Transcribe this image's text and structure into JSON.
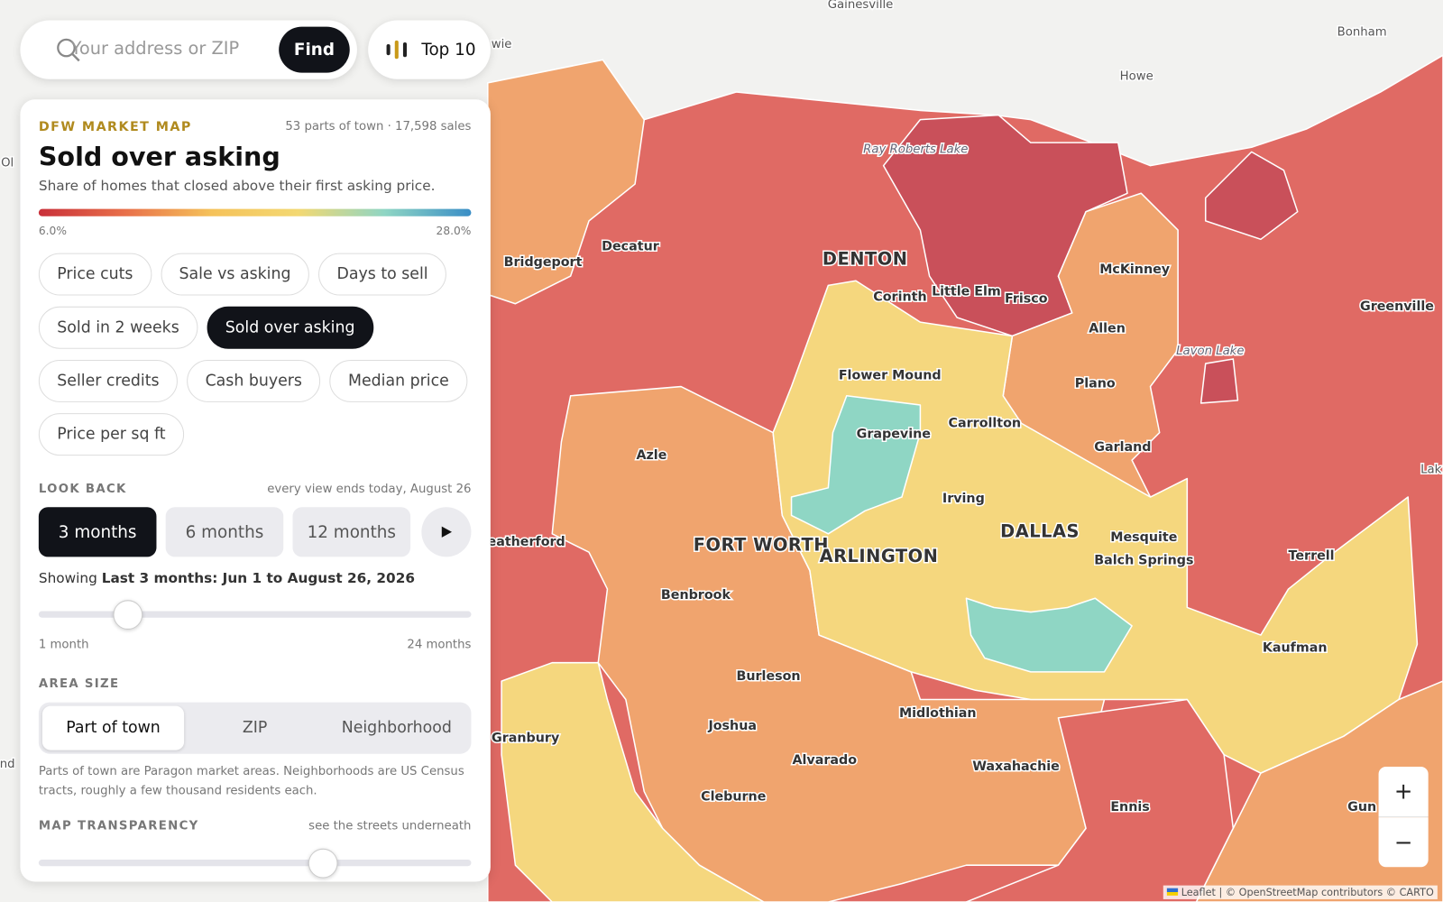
{
  "search": {
    "placeholder": "Your address or ZIP",
    "button": "Find"
  },
  "top_button": "Top 10",
  "panel": {
    "eyebrow": "DFW MARKET MAP",
    "summary": "53 parts of town · 17,598 sales",
    "title": "Sold over asking",
    "subtitle": "Share of homes that closed above their first asking price.",
    "legend": {
      "min": "6.0%",
      "max": "28.0%"
    },
    "metrics": [
      "Price cuts",
      "Sale vs asking",
      "Days to sell",
      "Sold in 2 weeks",
      "Sold over asking",
      "Seller credits",
      "Cash buyers",
      "Median price",
      "Price per sq ft"
    ],
    "active_metric": 4,
    "look_back": {
      "label": "LOOK BACK",
      "note": "every view ends today, August 26",
      "options": [
        "3 months",
        "6 months",
        "12 months"
      ],
      "active": 0,
      "showing_prefix": "Showing",
      "showing": "Last 3 months: Jun 1 to August 26, 2026",
      "slider_min": "1 month",
      "slider_max": "24 months"
    },
    "area_size": {
      "label": "AREA SIZE",
      "options": [
        "Part of town",
        "ZIP",
        "Neighborhood"
      ],
      "active": 0,
      "note": "Parts of town are Paragon market areas. Neighborhoods are US Census tracts, roughly a few thousand residents each."
    },
    "transparency": {
      "label": "MAP TRANSPARENCY",
      "note": "see the streets underneath"
    }
  },
  "map": {
    "places": [
      "Gainesville",
      "Bonham",
      "Howe",
      "wie",
      "Ol",
      "Bridgeport",
      "Decatur",
      "DENTON",
      "Corinth",
      "Little Elm",
      "Frisco",
      "McKinney",
      "Allen",
      "Greenville",
      "Flower Mound",
      "Plano",
      "Grapevine",
      "Carrollton",
      "Garland",
      "Azle",
      "Irving",
      "DALLAS",
      "Mesquite",
      "Balch Springs",
      "Terrell",
      "eatherford",
      "FORT WORTH",
      "ARLINGTON",
      "Benbrook",
      "Kaufman",
      "Burleson",
      "Midlothian",
      "Joshua",
      "Granbury",
      "Alvarado",
      "Waxahachie",
      "Cleburne",
      "Ennis",
      "nd",
      "Lak",
      "Gun"
    ],
    "lakes": [
      "Ray Roberts Lake",
      "Lavon Lake"
    ],
    "zoom_in": "+",
    "zoom_out": "−",
    "attribution": "Leaflet | © OpenStreetMap contributors © CARTO"
  }
}
